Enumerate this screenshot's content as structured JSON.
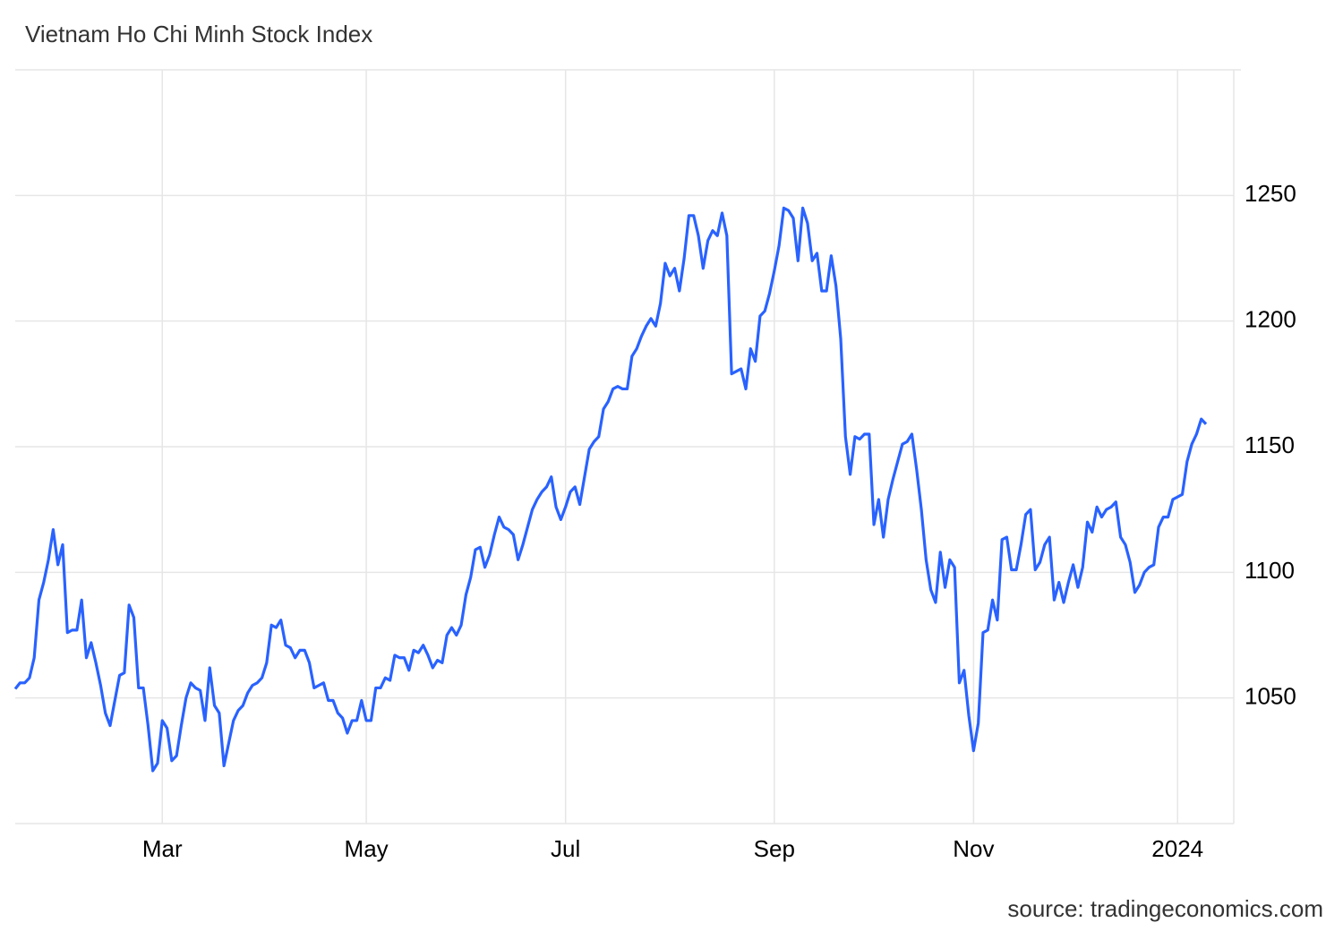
{
  "chart_data": {
    "type": "line",
    "title": "Vietnam Ho Chi Minh Stock Index",
    "source": "source: tradingeconomics.com",
    "color": "#2962ff",
    "grid": true,
    "ylim": [
      1000,
      1300
    ],
    "yticks": [
      1050,
      1100,
      1150,
      1200,
      1250
    ],
    "categories": [
      null,
      null,
      null,
      null,
      null,
      null,
      null,
      null,
      null,
      null,
      null,
      null,
      null,
      null,
      null,
      null,
      null,
      null,
      null,
      null,
      null,
      null,
      null,
      null,
      null,
      null,
      null,
      null,
      null,
      null,
      null,
      "Mar",
      null,
      null,
      null,
      null,
      null,
      null,
      null,
      null,
      null,
      null,
      null,
      null,
      null,
      null,
      null,
      null,
      null,
      null,
      null,
      null,
      null,
      null,
      null,
      null,
      null,
      null,
      null,
      null,
      null,
      null,
      null,
      null,
      null,
      null,
      null,
      null,
      null,
      null,
      null,
      null,
      null,
      null,
      "May",
      null,
      null,
      null,
      null,
      null,
      null,
      null,
      null,
      null,
      null,
      null,
      null,
      null,
      null,
      null,
      null,
      null,
      null,
      null,
      null,
      null,
      null,
      null,
      null,
      null,
      null,
      null,
      null,
      null,
      null,
      null,
      null,
      null,
      null,
      null,
      null,
      null,
      null,
      null,
      null,
      null,
      "Jul",
      null,
      null,
      null,
      null,
      null,
      null,
      null,
      null,
      null,
      null,
      null,
      null,
      null,
      null,
      null,
      null,
      null,
      null,
      null,
      null,
      null,
      null,
      null,
      null,
      null,
      null,
      null,
      null,
      null,
      null,
      null,
      null,
      null,
      null,
      null,
      null,
      null,
      null,
      null,
      null,
      null,
      null,
      null,
      "Sep",
      null,
      null,
      null,
      null,
      null,
      null,
      null,
      null,
      null,
      null,
      null,
      null,
      null,
      null,
      null,
      null,
      null,
      null,
      null,
      null,
      null,
      null,
      null,
      null,
      null,
      null,
      null,
      null,
      null,
      null,
      null,
      null,
      null,
      null,
      null,
      null,
      null,
      null,
      null,
      null,
      null,
      "Nov",
      null,
      null,
      null,
      null,
      null,
      null,
      null,
      null,
      null,
      null,
      null,
      null,
      null,
      null,
      null,
      null,
      null,
      null,
      null,
      null,
      null,
      null,
      null,
      null,
      null,
      null,
      null,
      null,
      null,
      null,
      null,
      null,
      null,
      null,
      null,
      null,
      null,
      null,
      null,
      null,
      null,
      null,
      "2024",
      null,
      null,
      null,
      null,
      null,
      null
    ],
    "values": [
      1053.6,
      1056,
      1056,
      1058,
      1066,
      1089,
      1096,
      1105,
      1117,
      1103,
      1111,
      1076,
      1077,
      1077,
      1089,
      1066,
      1072,
      1064,
      1055,
      1044,
      1039,
      1049,
      1059,
      1060,
      1087,
      1082,
      1054,
      1054,
      1039,
      1021,
      1024,
      1041,
      1038,
      1025,
      1027,
      1039,
      1050,
      1056,
      1054,
      1053,
      1041,
      1062,
      1047,
      1044,
      1023,
      1032,
      1041,
      1045,
      1047,
      1052,
      1055,
      1056,
      1058,
      1064,
      1079,
      1078,
      1081,
      1071,
      1070,
      1066,
      1069,
      1069,
      1064,
      1054,
      1055,
      1056,
      1049,
      1049,
      1044,
      1042,
      1036,
      1041,
      1041,
      1049,
      1041,
      1041,
      1054,
      1054,
      1058,
      1057,
      1067,
      1066,
      1066,
      1061,
      1069,
      1068,
      1071,
      1067,
      1062,
      1065,
      1064,
      1075,
      1078,
      1075,
      1079,
      1091,
      1098,
      1109,
      1110,
      1102,
      1107,
      1115,
      1122,
      1118,
      1117,
      1115,
      1105,
      1111,
      1118,
      1125,
      1129,
      1132,
      1134,
      1138,
      1126,
      1121,
      1126,
      1132,
      1134,
      1127,
      1138,
      1149,
      1152,
      1154,
      1165,
      1168,
      1173,
      1174,
      1173,
      1173,
      1186,
      1189,
      1194,
      1198,
      1201,
      1198,
      1207,
      1223,
      1218,
      1221,
      1212,
      1225,
      1242,
      1242,
      1234,
      1221,
      1232,
      1236,
      1234,
      1243,
      1234,
      1179,
      1180,
      1181,
      1173,
      1189,
      1184,
      1202,
      1204,
      1211,
      1220,
      1230,
      1245,
      1244,
      1241,
      1224,
      1245,
      1239,
      1224,
      1227,
      1212,
      1212,
      1226,
      1214,
      1193,
      1154,
      1139,
      1154,
      1153,
      1155,
      1155,
      1119,
      1129,
      1114,
      1129,
      1137,
      1144,
      1151,
      1152,
      1155,
      1141,
      1125,
      1105,
      1093,
      1088,
      1108,
      1094,
      1105,
      1102,
      1056,
      1061,
      1043,
      1029,
      1040,
      1076,
      1077,
      1089,
      1081,
      1113,
      1114,
      1101,
      1101,
      1111,
      1123,
      1125,
      1101,
      1104,
      1111,
      1114,
      1089,
      1096,
      1088,
      1096,
      1103,
      1094,
      1102,
      1120,
      1116,
      1126,
      1122,
      1125,
      1126,
      1128,
      1114,
      1111,
      1104,
      1092,
      1095,
      1100,
      1102,
      1103,
      1118,
      1122,
      1122,
      1129,
      1130,
      1131,
      1144,
      1151,
      1155,
      1161,
      1159
    ]
  }
}
